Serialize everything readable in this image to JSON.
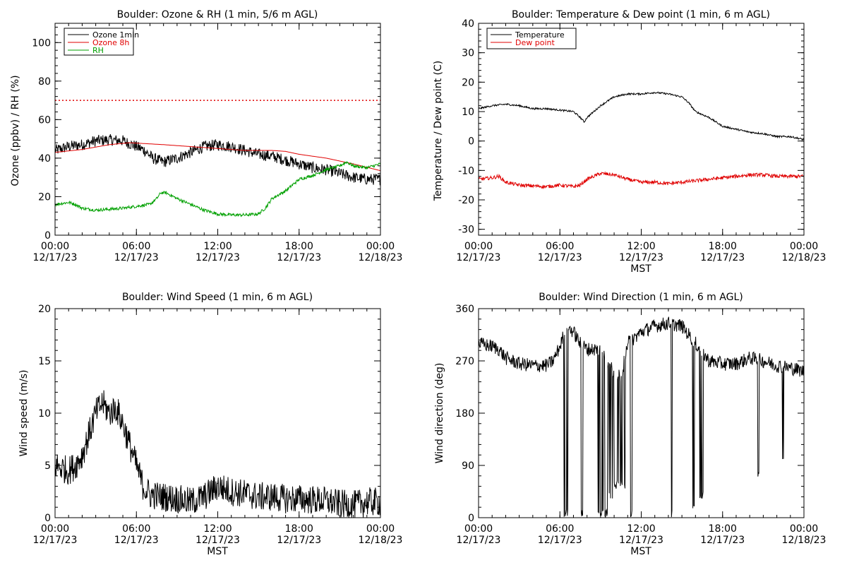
{
  "chart_data": [
    {
      "id": "ozone",
      "type": "line",
      "title": "Boulder: Ozone & RH (1 min, 5/6 m AGL)",
      "xlabel": "",
      "ylabel": "Ozone (ppbv) / RH (%)",
      "xlim": [
        0,
        24
      ],
      "ylim": [
        0,
        110
      ],
      "xticks": [
        {
          "value": 0,
          "time": "00:00",
          "date": "12/17/23"
        },
        {
          "value": 6,
          "time": "06:00",
          "date": "12/17/23"
        },
        {
          "value": 12,
          "time": "12:00",
          "date": "12/17/23"
        },
        {
          "value": 18,
          "time": "18:00",
          "date": "12/17/23"
        },
        {
          "value": 24,
          "time": "00:00",
          "date": "12/18/23"
        }
      ],
      "yticks": [
        0,
        20,
        40,
        60,
        80,
        100
      ],
      "legend": "top-left",
      "reference_line": {
        "y": 70,
        "color": "#e00000",
        "style": "dotted"
      },
      "series": [
        {
          "name": "Ozone 1min",
          "color": "#000000",
          "noise": 3,
          "points": [
            [
              0,
              44
            ],
            [
              1,
              46
            ],
            [
              2,
              47
            ],
            [
              3,
              49
            ],
            [
              4,
              49.5
            ],
            [
              5,
              49
            ],
            [
              6,
              46
            ],
            [
              6.6,
              44
            ],
            [
              7.2,
              40
            ],
            [
              8,
              38
            ],
            [
              9,
              40
            ],
            [
              10,
              43
            ],
            [
              11,
              46
            ],
            [
              12,
              47
            ],
            [
              13,
              46
            ],
            [
              14,
              44
            ],
            [
              15,
              42
            ],
            [
              16,
              41
            ],
            [
              17,
              39
            ],
            [
              18,
              37
            ],
            [
              19,
              35
            ],
            [
              20,
              34
            ],
            [
              21,
              32
            ],
            [
              22,
              30
            ],
            [
              23,
              29
            ],
            [
              24,
              29
            ]
          ]
        },
        {
          "name": "Ozone 8h",
          "color": "#e00000",
          "noise": 0,
          "points": [
            [
              0,
              43
            ],
            [
              2,
              44.5
            ],
            [
              4,
              47
            ],
            [
              5.5,
              48
            ],
            [
              8,
              47
            ],
            [
              10,
              46
            ],
            [
              12,
              45
            ],
            [
              14,
              44
            ],
            [
              16,
              44
            ],
            [
              17,
              43.5
            ],
            [
              18,
              42
            ],
            [
              20,
              40
            ],
            [
              22,
              37
            ],
            [
              24,
              33.5
            ]
          ]
        },
        {
          "name": "RH",
          "color": "#00a000",
          "noise": 0.8,
          "points": [
            [
              0,
              16
            ],
            [
              1,
              17
            ],
            [
              1.5,
              16
            ],
            [
              2,
              14
            ],
            [
              3,
              13
            ],
            [
              5,
              14
            ],
            [
              6,
              15
            ],
            [
              7,
              16
            ],
            [
              7.5,
              19
            ],
            [
              7.8,
              22
            ],
            [
              8.2,
              22
            ],
            [
              9,
              19
            ],
            [
              10,
              16
            ],
            [
              11,
              13
            ],
            [
              12,
              11
            ],
            [
              13,
              10.5
            ],
            [
              14,
              10.5
            ],
            [
              15,
              11
            ],
            [
              15.5,
              14
            ],
            [
              16,
              19
            ],
            [
              17,
              23
            ],
            [
              17.5,
              26
            ],
            [
              18,
              29
            ],
            [
              19,
              31
            ],
            [
              20,
              34
            ],
            [
              21,
              36
            ],
            [
              21.5,
              38
            ],
            [
              22,
              36
            ],
            [
              23,
              35
            ],
            [
              23.5,
              36
            ],
            [
              24,
              37
            ]
          ]
        }
      ]
    },
    {
      "id": "temp",
      "type": "line",
      "title": "Boulder: Temperature & Dew point (1 min, 6 m AGL)",
      "xlabel": "MST",
      "ylabel": "Temperature / Dew point (C)",
      "xlim": [
        0,
        24
      ],
      "ylim": [
        -32,
        40
      ],
      "xticks": [
        {
          "value": 0,
          "time": "00:00",
          "date": "12/17/23"
        },
        {
          "value": 6,
          "time": "06:00",
          "date": "12/17/23"
        },
        {
          "value": 12,
          "time": "12:00",
          "date": "12/17/23"
        },
        {
          "value": 18,
          "time": "18:00",
          "date": "12/17/23"
        },
        {
          "value": 24,
          "time": "00:00",
          "date": "12/18/23"
        }
      ],
      "yticks": [
        -30,
        -20,
        -10,
        0,
        10,
        20,
        30,
        40
      ],
      "legend": "top-left",
      "series": [
        {
          "name": "Temperature",
          "color": "#000000",
          "noise": 0.3,
          "points": [
            [
              0,
              11
            ],
            [
              1,
              12
            ],
            [
              2,
              12.5
            ],
            [
              3,
              12
            ],
            [
              4,
              11
            ],
            [
              5,
              11
            ],
            [
              6,
              10.5
            ],
            [
              7,
              10
            ],
            [
              7.5,
              8
            ],
            [
              7.8,
              6.5
            ],
            [
              8,
              8
            ],
            [
              9,
              12
            ],
            [
              10,
              15
            ],
            [
              11,
              16
            ],
            [
              12,
              16
            ],
            [
              13,
              16.5
            ],
            [
              14,
              16
            ],
            [
              15,
              15
            ],
            [
              15.5,
              13
            ],
            [
              16,
              10
            ],
            [
              17,
              8
            ],
            [
              18,
              5
            ],
            [
              19,
              4
            ],
            [
              20,
              3
            ],
            [
              21,
              2.5
            ],
            [
              22,
              1.5
            ],
            [
              23,
              1.5
            ],
            [
              24,
              0.5
            ]
          ]
        },
        {
          "name": "Dew point",
          "color": "#e00000",
          "noise": 0.6,
          "points": [
            [
              0,
              -13
            ],
            [
              1,
              -12.5
            ],
            [
              1.5,
              -12
            ],
            [
              2,
              -14
            ],
            [
              3,
              -15
            ],
            [
              5,
              -15.5
            ],
            [
              6,
              -15
            ],
            [
              7,
              -15.5
            ],
            [
              7.5,
              -15
            ],
            [
              8,
              -13
            ],
            [
              8.5,
              -12
            ],
            [
              9,
              -11
            ],
            [
              10,
              -11.5
            ],
            [
              11,
              -13
            ],
            [
              12,
              -14
            ],
            [
              13,
              -14
            ],
            [
              14,
              -14.5
            ],
            [
              15,
              -14
            ],
            [
              16,
              -13.5
            ],
            [
              17,
              -13
            ],
            [
              18,
              -12.5
            ],
            [
              19,
              -12
            ],
            [
              20,
              -11.5
            ],
            [
              21,
              -11.5
            ],
            [
              22,
              -12
            ],
            [
              23,
              -12
            ],
            [
              24,
              -12
            ]
          ]
        }
      ]
    },
    {
      "id": "wspd",
      "type": "line",
      "title": "Boulder: Wind Speed (1 min, 6 m AGL)",
      "xlabel": "MST",
      "ylabel": "Wind speed (m/s)",
      "xlim": [
        0,
        24
      ],
      "ylim": [
        0,
        20
      ],
      "xticks": [
        {
          "value": 0,
          "time": "00:00",
          "date": "12/17/23"
        },
        {
          "value": 6,
          "time": "06:00",
          "date": "12/17/23"
        },
        {
          "value": 12,
          "time": "12:00",
          "date": "12/17/23"
        },
        {
          "value": 18,
          "time": "18:00",
          "date": "12/17/23"
        },
        {
          "value": 24,
          "time": "00:00",
          "date": "12/18/23"
        }
      ],
      "yticks": [
        0,
        5,
        10,
        15,
        20
      ],
      "legend": "none",
      "series": [
        {
          "name": "",
          "color": "#000000",
          "noise": 1.4,
          "floor": 0,
          "points": [
            [
              0,
              5
            ],
            [
              1,
              4.5
            ],
            [
              1.5,
              5
            ],
            [
              2,
              6
            ],
            [
              2.5,
              8
            ],
            [
              3,
              10
            ],
            [
              3.5,
              11
            ],
            [
              4,
              10
            ],
            [
              4.5,
              10.5
            ],
            [
              5,
              9
            ],
            [
              5.5,
              7
            ],
            [
              6,
              5
            ],
            [
              6.5,
              3
            ],
            [
              7,
              2.2
            ],
            [
              8,
              2
            ],
            [
              9,
              1.8
            ],
            [
              10,
              1.5
            ],
            [
              11,
              2
            ],
            [
              12,
              3
            ],
            [
              13,
              2.5
            ],
            [
              14,
              2.3
            ],
            [
              15,
              2
            ],
            [
              16,
              2
            ],
            [
              17,
              1.8
            ],
            [
              18,
              1.8
            ],
            [
              19,
              1.7
            ],
            [
              20,
              1.6
            ],
            [
              21,
              1.3
            ],
            [
              22,
              1.2
            ],
            [
              23,
              1.5
            ],
            [
              24,
              1.5
            ]
          ]
        }
      ]
    },
    {
      "id": "wdir",
      "type": "line",
      "title": "Boulder: Wind Direction (1 min, 6 m AGL)",
      "xlabel": "MST",
      "ylabel": "Wind direction (deg)",
      "xlim": [
        0,
        24
      ],
      "ylim": [
        0,
        360
      ],
      "xticks": [
        {
          "value": 0,
          "time": "00:00",
          "date": "12/17/23"
        },
        {
          "value": 6,
          "time": "06:00",
          "date": "12/17/23"
        },
        {
          "value": 12,
          "time": "12:00",
          "date": "12/17/23"
        },
        {
          "value": 18,
          "time": "18:00",
          "date": "12/17/23"
        },
        {
          "value": 24,
          "time": "00:00",
          "date": "12/18/23"
        }
      ],
      "yticks": [
        0,
        90,
        180,
        270,
        360
      ],
      "legend": "none",
      "series": [
        {
          "name": "",
          "color": "#000000",
          "noise": 12,
          "floor": 0,
          "ceil": 360,
          "points": [
            [
              0,
              300
            ],
            [
              1,
              295
            ],
            [
              1.5,
              290
            ],
            [
              2,
              275
            ],
            [
              3,
              265
            ],
            [
              4,
              262
            ],
            [
              5,
              262
            ],
            [
              5.5,
              270
            ],
            [
              6,
              295
            ],
            [
              6.5,
              330
            ],
            [
              7,
              320
            ],
            [
              7.5,
              300
            ],
            [
              8,
              290
            ],
            [
              9,
              290
            ],
            [
              10,
              250
            ],
            [
              10.5,
              240
            ],
            [
              11,
              300
            ],
            [
              12,
              320
            ],
            [
              13,
              330
            ],
            [
              14,
              335
            ],
            [
              15,
              330
            ],
            [
              16,
              300
            ],
            [
              17,
              270
            ],
            [
              18,
              265
            ],
            [
              19,
              265
            ],
            [
              20,
              275
            ],
            [
              21,
              270
            ],
            [
              22,
              262
            ],
            [
              23,
              258
            ],
            [
              24,
              252
            ]
          ],
          "drops": [
            [
              6.3,
              6.6,
              0
            ],
            [
              7.5,
              7.7,
              0
            ],
            [
              8.8,
              9.2,
              0
            ],
            [
              9.3,
              9.5,
              0
            ],
            [
              9.6,
              9.9,
              30
            ],
            [
              10,
              10.9,
              50
            ],
            [
              11.2,
              11.4,
              0
            ],
            [
              14.2,
              14.4,
              0
            ],
            [
              15.8,
              16,
              10
            ],
            [
              16.3,
              16.6,
              30
            ],
            [
              20.6,
              20.7,
              65
            ],
            [
              22.4,
              22.5,
              100
            ]
          ]
        }
      ]
    }
  ]
}
